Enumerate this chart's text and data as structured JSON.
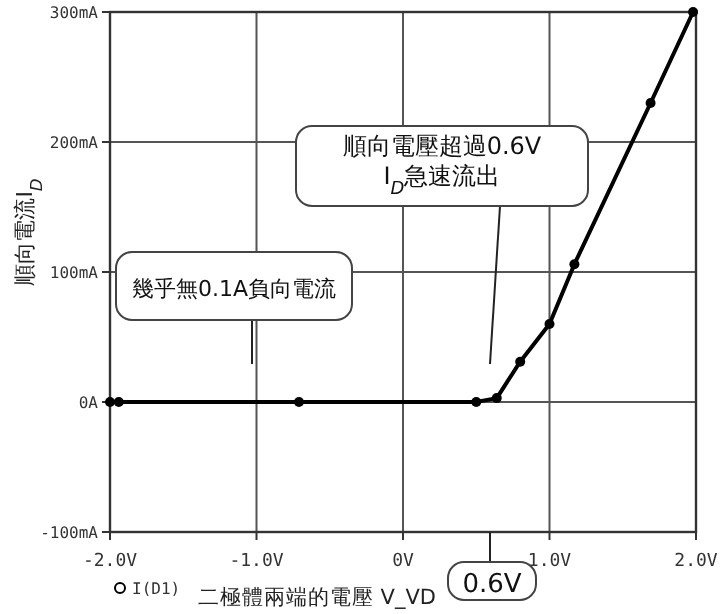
{
  "chart_data": {
    "type": "line",
    "xlabel": "二極體兩端的電壓 V_VD",
    "ylabel": "順向電流I$_{D}$",
    "xlim": [
      -2.0,
      2.0
    ],
    "ylim": [
      -100,
      300
    ],
    "xticks": [
      {
        "value": -2.0,
        "label": "-2.0V"
      },
      {
        "value": -1.0,
        "label": "-1.0V"
      },
      {
        "value": 0,
        "label": "0V"
      },
      {
        "value": 1.0,
        "label": "1.0V"
      },
      {
        "value": 2.0,
        "label": "2.0V"
      }
    ],
    "yticks": [
      {
        "value": -100,
        "label": "-100mA"
      },
      {
        "value": 0,
        "label": "0A"
      },
      {
        "value": 100,
        "label": "100mA"
      },
      {
        "value": 200,
        "label": "200mA"
      },
      {
        "value": 300,
        "label": "300mA"
      }
    ],
    "grid": true,
    "legend": "bottom left",
    "marker": "circle",
    "series": [
      {
        "name": "I(D1)",
        "color": "#000000",
        "x": [
          -2.0,
          -1.94,
          -0.71,
          0.5,
          0.64,
          0.8,
          1.0,
          1.17,
          1.69,
          1.98
        ],
        "values": [
          0,
          0,
          0,
          0,
          3,
          31,
          60,
          106,
          230,
          300
        ]
      }
    ],
    "annotations": [
      "幾乎無0.1A負向電流",
      "順向電壓超過0.6V\nI$_{D}$急速流出",
      "0.6V"
    ]
  }
}
